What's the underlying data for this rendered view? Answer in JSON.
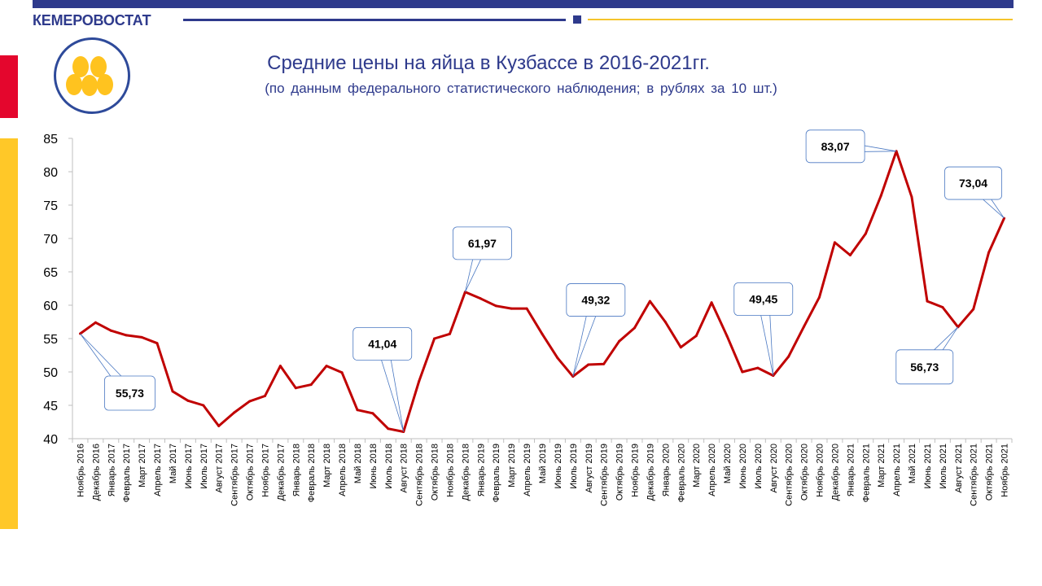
{
  "header": {
    "brand": "КЕМЕРОВОСТАТ"
  },
  "colors": {
    "brand_blue": "#2e3a8c",
    "accent_red": "#e4062d",
    "accent_yellow": "#ffc828",
    "line": "#c00000",
    "egg": "#ffc31f"
  },
  "icons": {
    "logo": "eggs-icon"
  },
  "chart_data": {
    "type": "line",
    "title": "Средние цены на яйца в Кузбассе в 2016-2021гг.",
    "subtitle": "(по данным федерального статистического наблюдения; в рублях за 10 шт.)",
    "xlabel": "",
    "ylabel": "",
    "ylim": [
      40,
      85
    ],
    "yticks": [
      40,
      45,
      50,
      55,
      60,
      65,
      70,
      75,
      80,
      85
    ],
    "grid": false,
    "categories": [
      "Ноябрь 2016",
      "Декабрь 2016",
      "Январь 2017",
      "Февраль 2017",
      "Март 2017",
      "Апрель 2017",
      "Май 2017",
      "Июнь 2017",
      "Июль 2017",
      "Август 2017",
      "Сентябрь 2017",
      "Октябрь 2017",
      "Ноябрь 2017",
      "Декабрь 2017",
      "Январь 2018",
      "Февраль 2018",
      "Март 2018",
      "Апрель 2018",
      "Май 2018",
      "Июнь 2018",
      "Июль 2018",
      "Август 2018",
      "Сентябрь 2018",
      "Октябрь 2018",
      "Ноябрь 2018",
      "Декабрь 2018",
      "Январь 2019",
      "Февраль 2019",
      "Март 2019",
      "Апрель 2019",
      "Май 2019",
      "Июнь 2019",
      "Июль 2019",
      "Август 2019",
      "Сентябрь 2019",
      "Октябрь 2019",
      "Ноябрь 2019",
      "Декабрь 2019",
      "Январь 2020",
      "Февраль 2020",
      "Март 2020",
      "Апрель 2020",
      "Май 2020",
      "Июнь 2020",
      "Июль 2020",
      "Август 2020",
      "Сентябрь 2020",
      "Октябрь 2020",
      "Ноябрь 2020",
      "Декабрь 2020",
      "Январь 2021",
      "Февраль 2021",
      "Март 2021",
      "Апрель 2021",
      "Май 2021",
      "Июнь 2021",
      "Июль 2021",
      "Август 2021",
      "Сентябрь 2021",
      "Октябрь 2021",
      "Ноябрь 2021"
    ],
    "series": [
      {
        "values": [
          55.73,
          57.4,
          56.2,
          55.5,
          55.2,
          54.3,
          47.1,
          45.7,
          45.0,
          41.9,
          43.9,
          45.6,
          46.4,
          50.9,
          47.6,
          48.1,
          50.9,
          49.9,
          44.3,
          43.8,
          41.5,
          41.04,
          48.6,
          55.0,
          55.7,
          61.97,
          61.0,
          59.9,
          59.5,
          59.5,
          55.7,
          52.1,
          49.32,
          51.1,
          51.2,
          54.6,
          56.6,
          60.6,
          57.5,
          53.7,
          55.4,
          60.4,
          55.4,
          50.0,
          50.6,
          49.45,
          52.3,
          56.8,
          61.2,
          69.4,
          67.5,
          70.7,
          76.4,
          83.07,
          76.2,
          60.6,
          59.7,
          56.73,
          59.4,
          67.9,
          73.04
        ]
      }
    ],
    "annotations": [
      {
        "index": 0,
        "label": "55,73"
      },
      {
        "index": 21,
        "label": "41,04"
      },
      {
        "index": 25,
        "label": "61,97"
      },
      {
        "index": 32,
        "label": "49,32"
      },
      {
        "index": 45,
        "label": "49,45"
      },
      {
        "index": 53,
        "label": "83,07"
      },
      {
        "index": 57,
        "label": "56,73"
      },
      {
        "index": 60,
        "label": "73,04"
      }
    ]
  }
}
